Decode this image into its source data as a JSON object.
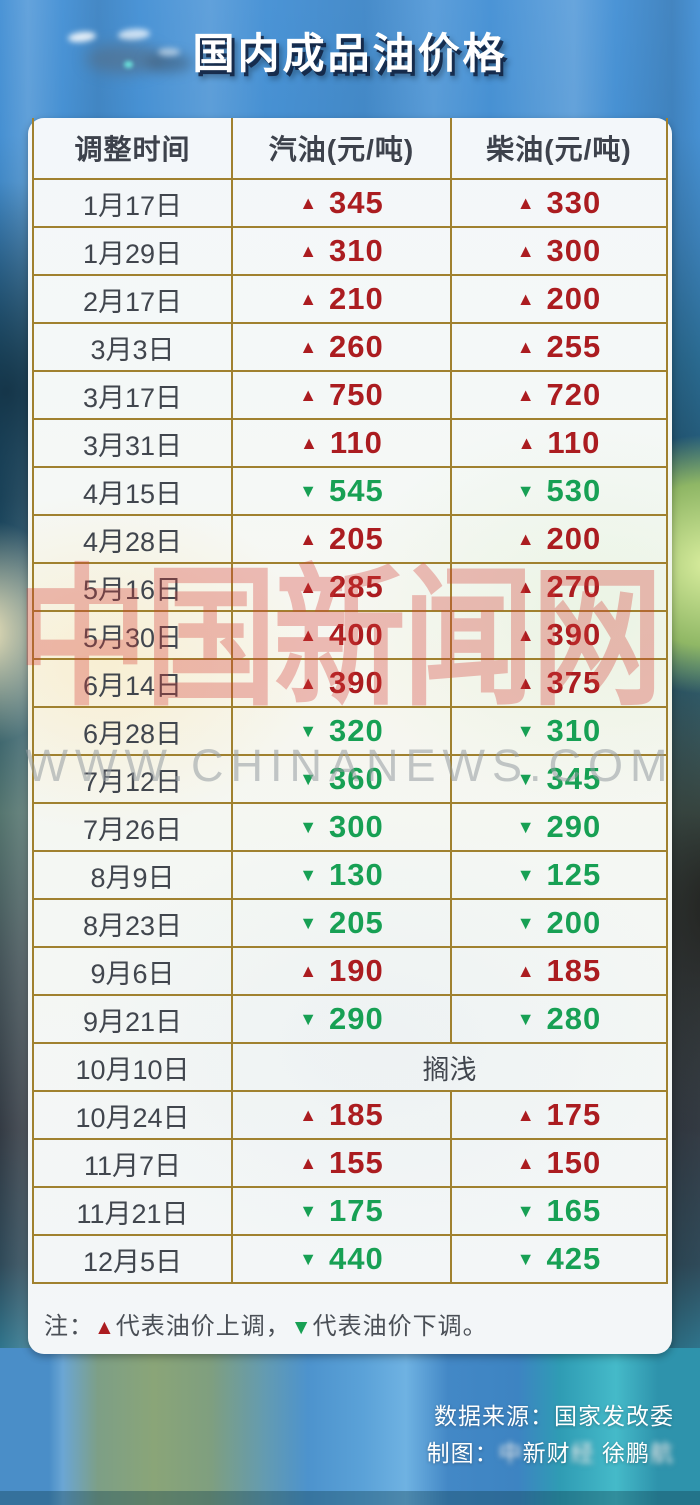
{
  "title": "国内成品油价格",
  "watermark": {
    "calligraphy": "中国新闻网",
    "url": "WWW.CHINANEWS.COM"
  },
  "icons": {
    "up": "▲",
    "down": "▼"
  },
  "colors": {
    "up": "#ab1c20",
    "down": "#17a054",
    "gold": "#a0812f"
  },
  "table": {
    "headers": [
      "调整时间",
      "汽油(元/吨)",
      "柴油(元/吨)"
    ],
    "rows": [
      {
        "date": "1月17日",
        "gas": {
          "dir": "up",
          "val": "345"
        },
        "diesel": {
          "dir": "up",
          "val": "330"
        }
      },
      {
        "date": "1月29日",
        "gas": {
          "dir": "up",
          "val": "310"
        },
        "diesel": {
          "dir": "up",
          "val": "300"
        }
      },
      {
        "date": "2月17日",
        "gas": {
          "dir": "up",
          "val": "210"
        },
        "diesel": {
          "dir": "up",
          "val": "200"
        }
      },
      {
        "date": "3月3日",
        "gas": {
          "dir": "up",
          "val": "260"
        },
        "diesel": {
          "dir": "up",
          "val": "255"
        }
      },
      {
        "date": "3月17日",
        "gas": {
          "dir": "up",
          "val": "750"
        },
        "diesel": {
          "dir": "up",
          "val": "720"
        }
      },
      {
        "date": "3月31日",
        "gas": {
          "dir": "up",
          "val": "110"
        },
        "diesel": {
          "dir": "up",
          "val": "110"
        }
      },
      {
        "date": "4月15日",
        "gas": {
          "dir": "down",
          "val": "545"
        },
        "diesel": {
          "dir": "down",
          "val": "530"
        }
      },
      {
        "date": "4月28日",
        "gas": {
          "dir": "up",
          "val": "205"
        },
        "diesel": {
          "dir": "up",
          "val": "200"
        }
      },
      {
        "date": "5月16日",
        "gas": {
          "dir": "up",
          "val": "285"
        },
        "diesel": {
          "dir": "up",
          "val": "270"
        }
      },
      {
        "date": "5月30日",
        "gas": {
          "dir": "up",
          "val": "400"
        },
        "diesel": {
          "dir": "up",
          "val": "390"
        }
      },
      {
        "date": "6月14日",
        "gas": {
          "dir": "up",
          "val": "390"
        },
        "diesel": {
          "dir": "up",
          "val": "375"
        }
      },
      {
        "date": "6月28日",
        "gas": {
          "dir": "down",
          "val": "320"
        },
        "diesel": {
          "dir": "down",
          "val": "310"
        }
      },
      {
        "date": "7月12日",
        "gas": {
          "dir": "down",
          "val": "360"
        },
        "diesel": {
          "dir": "down",
          "val": "345"
        }
      },
      {
        "date": "7月26日",
        "gas": {
          "dir": "down",
          "val": "300"
        },
        "diesel": {
          "dir": "down",
          "val": "290"
        }
      },
      {
        "date": "8月9日",
        "gas": {
          "dir": "down",
          "val": "130"
        },
        "diesel": {
          "dir": "down",
          "val": "125"
        }
      },
      {
        "date": "8月23日",
        "gas": {
          "dir": "down",
          "val": "205"
        },
        "diesel": {
          "dir": "down",
          "val": "200"
        }
      },
      {
        "date": "9月6日",
        "gas": {
          "dir": "up",
          "val": "190"
        },
        "diesel": {
          "dir": "up",
          "val": "185"
        }
      },
      {
        "date": "9月21日",
        "gas": {
          "dir": "down",
          "val": "290"
        },
        "diesel": {
          "dir": "down",
          "val": "280"
        }
      },
      {
        "date": "10月10日",
        "merged": "搁浅"
      },
      {
        "date": "10月24日",
        "gas": {
          "dir": "up",
          "val": "185"
        },
        "diesel": {
          "dir": "up",
          "val": "175"
        }
      },
      {
        "date": "11月7日",
        "gas": {
          "dir": "up",
          "val": "155"
        },
        "diesel": {
          "dir": "up",
          "val": "150"
        }
      },
      {
        "date": "11月21日",
        "gas": {
          "dir": "down",
          "val": "175"
        },
        "diesel": {
          "dir": "down",
          "val": "165"
        }
      },
      {
        "date": "12月5日",
        "gas": {
          "dir": "down",
          "val": "440"
        },
        "diesel": {
          "dir": "down",
          "val": "425"
        }
      }
    ]
  },
  "note": {
    "prefix": "注：",
    "up_icon": "▲",
    "up_text": "代表油价上调，",
    "down_icon": "▼",
    "down_text": "代表油价下调。"
  },
  "credits": {
    "source": "数据来源：国家发改委",
    "maker_segments": [
      {
        "t": "制图：",
        "blur": false
      },
      {
        "t": "中",
        "blur": true
      },
      {
        "t": "新财",
        "blur": false
      },
      {
        "t": "经",
        "blur": true
      },
      {
        "t": " 徐鹏",
        "blur": false
      },
      {
        "t": "航",
        "blur": true
      }
    ]
  },
  "chart_data": {
    "type": "table",
    "title": "国内成品油价格",
    "columns": [
      "调整时间",
      "汽油(元/吨)",
      "柴油(元/吨)"
    ],
    "unit": "元/吨",
    "value_convention": "positive = ▲ 上调 (red), negative = ▼ 下调 (green)",
    "rows": [
      [
        "1月17日",
        345,
        330
      ],
      [
        "1月29日",
        310,
        300
      ],
      [
        "2月17日",
        210,
        200
      ],
      [
        "3月3日",
        260,
        255
      ],
      [
        "3月17日",
        750,
        720
      ],
      [
        "3月31日",
        110,
        110
      ],
      [
        "4月15日",
        -545,
        -530
      ],
      [
        "4月28日",
        205,
        200
      ],
      [
        "5月16日",
        285,
        270
      ],
      [
        "5月30日",
        400,
        390
      ],
      [
        "6月14日",
        390,
        375
      ],
      [
        "6月28日",
        -320,
        -310
      ],
      [
        "7月12日",
        -360,
        -345
      ],
      [
        "7月26日",
        -300,
        -290
      ],
      [
        "8月9日",
        -130,
        -125
      ],
      [
        "8月23日",
        -205,
        -200
      ],
      [
        "9月6日",
        190,
        185
      ],
      [
        "9月21日",
        -290,
        -280
      ],
      [
        "10月10日",
        "搁浅",
        "搁浅"
      ],
      [
        "10月24日",
        185,
        175
      ],
      [
        "11月7日",
        155,
        150
      ],
      [
        "11月21日",
        -175,
        -165
      ],
      [
        "12月5日",
        -440,
        -425
      ]
    ],
    "legend": "▲ = 油价上调(红色), ▼ = 油价下调(绿色)",
    "source": "国家发改委"
  }
}
